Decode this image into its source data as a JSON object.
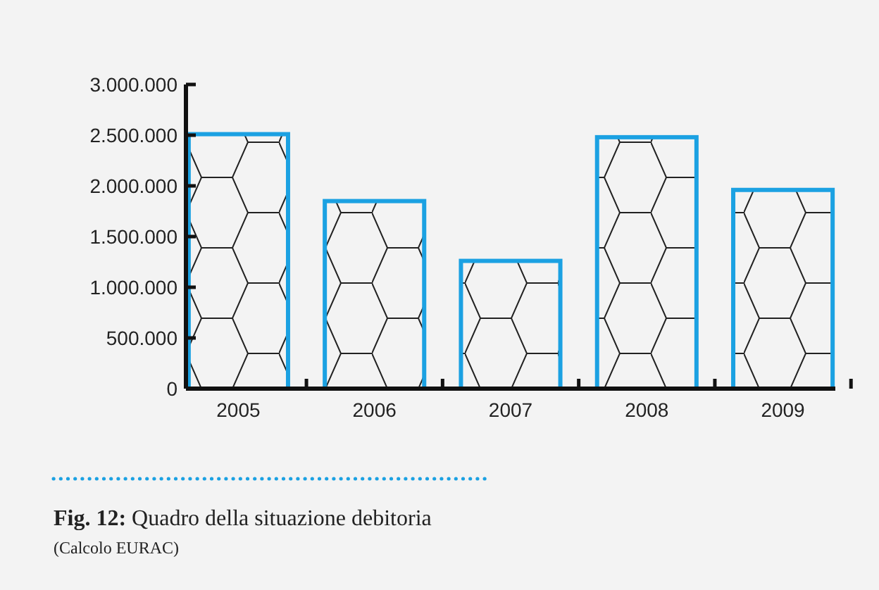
{
  "chart_data": {
    "type": "bar",
    "title": "Fig. 12: Quadro della situazione debitoria",
    "annotations": [
      "(Calcolo EURAC)"
    ],
    "categories": [
      "2005",
      "2006",
      "2007",
      "2008",
      "2009"
    ],
    "values": [
      2510000,
      1850000,
      1260000,
      2480000,
      1960000
    ],
    "color": "#1ba1e2",
    "ylim": [
      0,
      3000000
    ],
    "yticks": [
      {
        "value": 0,
        "label": "0"
      },
      {
        "value": 500000,
        "label": "500.000"
      },
      {
        "value": 1000000,
        "label": "1.000.000"
      },
      {
        "value": 1500000,
        "label": "1.500.000"
      },
      {
        "value": 2000000,
        "label": "2.000.000"
      },
      {
        "value": 2500000,
        "label": "2.500.000"
      },
      {
        "value": 3000000,
        "label": "3.000.000"
      }
    ],
    "grid": false
  }
}
